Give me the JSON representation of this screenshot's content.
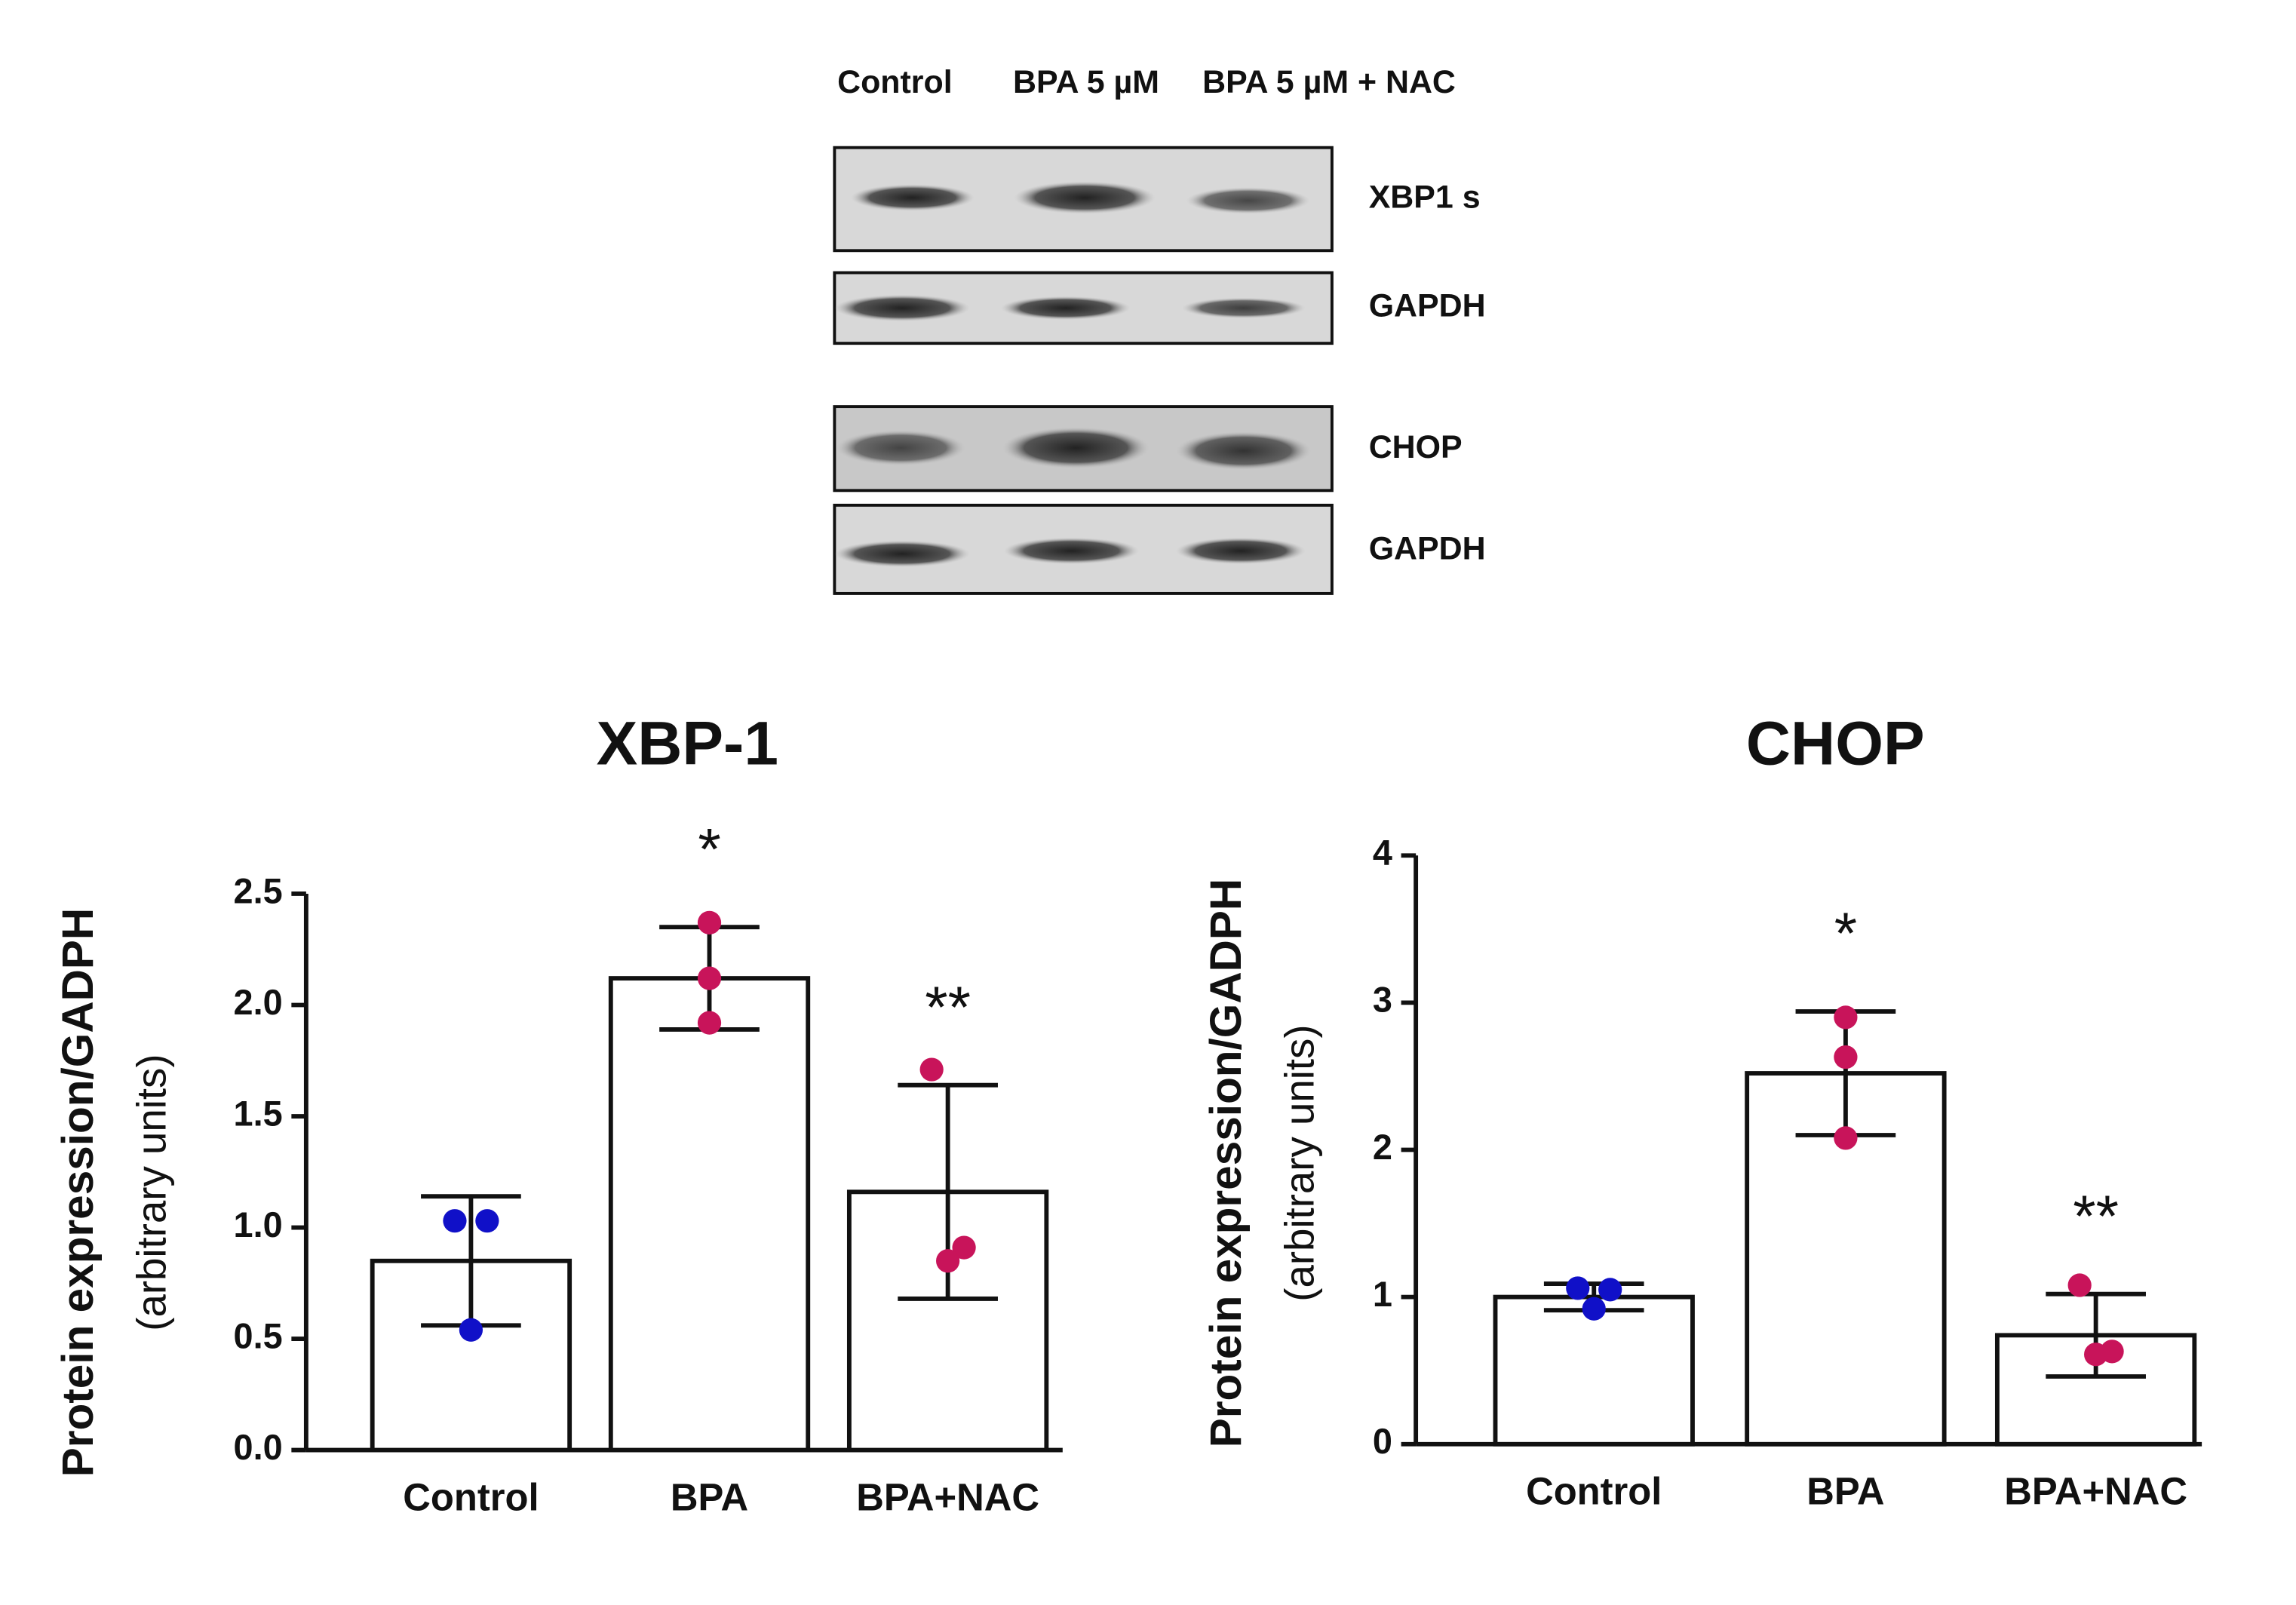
{
  "blot": {
    "lanes": [
      "Control",
      "BPA 5 µM",
      "BPA 5 µM + NAC"
    ],
    "bands": [
      "XBP1 s",
      "GAPDH",
      "CHOP",
      "GAPDH"
    ]
  },
  "chart_data": [
    {
      "type": "bar",
      "title": "XBP-1",
      "ylabel": [
        "Protein expression/GADPH",
        "(arbitrary units)"
      ],
      "categories": [
        "Control",
        "BPA",
        "BPA+NAC"
      ],
      "values": [
        0.85,
        2.12,
        1.16
      ],
      "errors": [
        0.29,
        0.23,
        0.48
      ],
      "points": [
        [
          1.03,
          1.03,
          0.54
        ],
        [
          2.37,
          2.12,
          1.92
        ],
        [
          1.71,
          0.91,
          0.85
        ]
      ],
      "point_colors": [
        "#1010c8",
        "#c8145a",
        "#c8145a"
      ],
      "significance": [
        null,
        "*",
        "**"
      ],
      "color": "#ffffff",
      "ylim": [
        0,
        2.5
      ],
      "yticks": [
        {
          "value": 0,
          "label": "0.0"
        },
        0.5,
        {
          "value": 1,
          "label": "1.0"
        },
        1.5,
        {
          "value": 2,
          "label": "2.0"
        },
        2.5
      ]
    },
    {
      "type": "bar",
      "title": "CHOP",
      "ylabel": [
        "Protein expression/GADPH",
        "(arbitrary units)"
      ],
      "categories": [
        "Control",
        "BPA",
        "BPA+NAC"
      ],
      "values": [
        1.0,
        2.52,
        0.74
      ],
      "errors": [
        0.09,
        0.42,
        0.28
      ],
      "points": [
        [
          1.06,
          1.05,
          0.92
        ],
        [
          2.9,
          2.63,
          2.08
        ],
        [
          1.08,
          0.63,
          0.61
        ]
      ],
      "point_colors": [
        "#1010c8",
        "#c8145a",
        "#c8145a"
      ],
      "significance": [
        null,
        "*",
        "**"
      ],
      "color": "#ffffff",
      "ylim": [
        0,
        4
      ],
      "yticks": [
        0,
        1,
        2,
        3,
        4
      ]
    }
  ]
}
